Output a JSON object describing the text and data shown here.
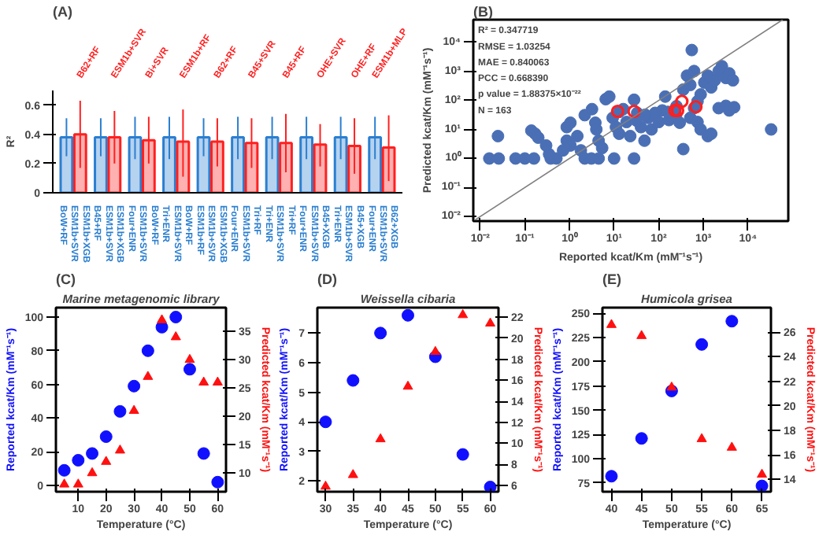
{
  "chart_data": [
    {
      "type": "bar",
      "ylabel": "R²",
      "ylim": [
        0,
        0.7
      ],
      "yticks": [
        0,
        0.2,
        0.4,
        0.6
      ],
      "categories": [
        "ESM1b+XGB\nESM1b+SVR\nBoW+RF",
        "ESM1b+XGB\nESM1b+SVR\nB45+RF",
        "BoW+RF\nESM1b+SVR\nFour+ENR",
        "BoW+RF\nESM1b+SVR\nTri+ENR",
        "ESM1b+XGB\nESM1b+SVR\nESM1b+RF",
        "Tri+RF\nESM1b+SVR\nFour+ENR",
        "Tri+RF\nESM1b+SVR\nTri+ENR",
        "B45+XGB\nESM1b+SVR\nFour+ENR",
        "B45+XGB\nESM1b+SVR\nTri+ENR",
        "B62+XGB\nESM1b+SVR\nFour+ENR"
      ],
      "series": [
        {
          "color": "#2b7fd0",
          "values": [
            0.38,
            0.38,
            0.38,
            0.38,
            0.38,
            0.38,
            0.38,
            0.38,
            0.38,
            0.38
          ],
          "errors": [
            [
              0.25,
              0.51
            ],
            [
              0.25,
              0.51
            ],
            [
              0.23,
              0.52
            ],
            [
              0.23,
              0.52
            ],
            [
              0.25,
              0.51
            ],
            [
              0.23,
              0.52
            ],
            [
              0.23,
              0.52
            ],
            [
              0.23,
              0.52
            ],
            [
              0.23,
              0.52
            ],
            [
              0.23,
              0.52
            ]
          ]
        },
        {
          "color": "#ff2020",
          "values": [
            0.4,
            0.38,
            0.36,
            0.35,
            0.35,
            0.34,
            0.34,
            0.33,
            0.32,
            0.31
          ],
          "errors": [
            [
              0.17,
              0.63
            ],
            [
              0.2,
              0.56
            ],
            [
              0.2,
              0.52
            ],
            [
              0.11,
              0.57
            ],
            [
              0.18,
              0.51
            ],
            [
              0.17,
              0.51
            ],
            [
              0.14,
              0.54
            ],
            [
              0.18,
              0.47
            ],
            [
              0.13,
              0.51
            ],
            [
              0.08,
              0.53
            ]
          ]
        }
      ],
      "annotations": [
        "(A)",
        "B62+RF",
        "ESM1b+SVR",
        "Bi+SVR",
        "ESM1b+RF",
        "B62+RF",
        "B45+SVR",
        "B45+RF",
        "OHE+SVR",
        "OHE+RF",
        "ESM1b+MLP"
      ]
    },
    {
      "type": "scatter",
      "log": "xy",
      "xlabel": "Reported kcat/Km (mM⁻¹s⁻¹)",
      "ylabel": "Predicted kcat/Km (mM⁻¹s⁻¹)",
      "xlim": [
        0.007,
        80000
      ],
      "ylim": [
        0.007,
        60000
      ],
      "xticks": [
        {
          "value": 0.01,
          "label": "10⁻²"
        },
        {
          "value": 0.1,
          "label": "10⁻¹"
        },
        {
          "value": 1,
          "label": "10⁰"
        },
        {
          "value": 10,
          "label": "10¹"
        },
        {
          "value": 100,
          "label": "10²"
        },
        {
          "value": 1000,
          "label": "10³"
        },
        {
          "value": 10000,
          "label": "10⁴"
        }
      ],
      "yticks": [
        {
          "value": 0.01,
          "label": "10⁻²"
        },
        {
          "value": 0.1,
          "label": "10⁻¹"
        },
        {
          "value": 1,
          "label": "10⁰"
        },
        {
          "value": 10,
          "label": "10¹"
        },
        {
          "value": 100,
          "label": "10²"
        },
        {
          "value": 1000,
          "label": "10³"
        },
        {
          "value": 10000,
          "label": "10⁴"
        }
      ],
      "marker": "circle",
      "series": [
        {
          "color": "#4a6fb5",
          "x": [
            0.025,
            0.14,
            0.17,
            0.2,
            0.87,
            1.05,
            0.87,
            1.05,
            1.5,
            1.8,
            2.2,
            3.2,
            3.8,
            4.5,
            5.4,
            6.5,
            7.8,
            9.3,
            11,
            13,
            16,
            19,
            23,
            28,
            33,
            40,
            48,
            58,
            69,
            83,
            100,
            120,
            140,
            170,
            245,
            295,
            355,
            430,
            510,
            620,
            510,
            620,
            740,
            870,
            1050,
            1260,
            1500,
            1800,
            2200,
            2600,
            3200,
            3800,
            4600,
            740,
            870,
            1260,
            1500,
            2200,
            3200,
            3800,
            4900,
            355,
            550,
            33000,
            0.016,
            0.026,
            0.062,
            0.1,
            0.16,
            0.38,
            0.51,
            2.2,
            3.1,
            4.5,
            10,
            28,
            0.35,
            0.3,
            0.72,
            32,
            50,
            160,
            250,
            13,
            4
          ],
          "values": [
            5.9,
            9.1,
            7.1,
            5.2,
            12,
            17,
            4.1,
            2.8,
            5.9,
            1.9,
            31,
            50,
            17,
            4.1,
            2.3,
            110,
            135,
            25,
            12,
            7.1,
            50,
            18,
            5.9,
            105,
            37,
            12,
            4.1,
            25,
            10,
            37,
            18,
            45,
            135,
            21,
            31,
            17,
            235,
            710,
            340,
            1020,
            25,
            54,
            93,
            160,
            410,
            710,
            280,
            490,
            1020,
            1500,
            590,
            850,
            490,
            18,
            10,
            5.9,
            7.1,
            54,
            65,
            45,
            58,
            2.1,
            5400,
            10,
            1,
            1,
            1,
            1,
            1,
            1,
            1,
            1,
            1,
            1,
            1,
            1,
            1.4,
            2.8,
            1.9,
            20,
            32,
            40,
            63,
            40,
            10
          ]
        },
        {
          "color": "#ff2020",
          "x": [
            12,
            28,
            230,
            265,
            330,
            680
          ],
          "values": [
            42,
            42,
            45,
            45,
            93,
            60
          ]
        },
        {
          "type": "line",
          "color": "#808080",
          "marker": "none",
          "x": [
            0.007,
            60000
          ],
          "values": [
            0.007,
            60000
          ]
        }
      ],
      "annotations": [
        "(B)",
        "R² = 0.347719",
        "RMSE = 1.03254",
        "MAE = 0.840063",
        "PCC = 0.668390",
        "p value = 1.88375×10⁻²²",
        "N = 163"
      ]
    },
    {
      "type": "scatter",
      "title": "Marine metagenomic library",
      "xlabel": "Temperature (°C)",
      "ylabel": "Reported kcat/Km (mM⁻¹s⁻¹)",
      "y2label": "Predicted kcat/Km (mM⁻¹s⁻¹)",
      "x": [
        5,
        10,
        15,
        20,
        25,
        30,
        35,
        40,
        45,
        50,
        55,
        60
      ],
      "xlim": [
        2,
        63
      ],
      "xticks": [
        10,
        20,
        30,
        40,
        50,
        60
      ],
      "ylim": [
        -3.7,
        105.6
      ],
      "yticks": [
        0,
        20,
        40,
        60,
        80,
        100
      ],
      "y2lim": [
        6.7,
        39.2
      ],
      "y2ticks": [
        10,
        15,
        20,
        25,
        30,
        35
      ],
      "series": [
        {
          "color": "#1010ff",
          "marker": "circle",
          "values": [
            9,
            15,
            19,
            29,
            44,
            59,
            80,
            94,
            100,
            69,
            19,
            2
          ]
        },
        {
          "color": "#ff1010",
          "marker": "triangle",
          "axis": "y2",
          "values": [
            8,
            8,
            10,
            12,
            14,
            21,
            27,
            37,
            34,
            30,
            26,
            26
          ]
        }
      ],
      "annotations": [
        "(C)"
      ]
    },
    {
      "type": "scatter",
      "title": "Weissella cibaria",
      "xlabel": "Temperature (°C)",
      "ylabel": "Reported kcat/Km (mM⁻¹s⁻¹)",
      "y2label": "Predicted kcat/Km (mM⁻¹s⁻¹)",
      "x": [
        30,
        35,
        40,
        45,
        50,
        55,
        60
      ],
      "xlim": [
        28.5,
        61.5
      ],
      "xticks": [
        30,
        35,
        40,
        45,
        50,
        55,
        60
      ],
      "ylim": [
        1.64,
        7.86
      ],
      "yticks": [
        2,
        3,
        4,
        5,
        6,
        7
      ],
      "y2lim": [
        5.4,
        22.9
      ],
      "y2ticks": [
        6,
        8,
        10,
        12,
        14,
        16,
        18,
        20,
        22
      ],
      "series": [
        {
          "color": "#1010ff",
          "marker": "circle",
          "values": [
            4.0,
            5.4,
            7.0,
            7.6,
            6.2,
            2.9,
            1.8
          ]
        },
        {
          "color": "#ff1010",
          "marker": "triangle",
          "axis": "y2",
          "values": [
            5.9,
            7.0,
            10.4,
            15.4,
            18.7,
            22.2,
            21.4
          ]
        }
      ],
      "annotations": [
        "(D)"
      ]
    },
    {
      "type": "scatter",
      "title": "Humicola grisea",
      "xlabel": "Temperature (°C)",
      "ylabel": "Reported kcat/Km (mM⁻¹s⁻¹)",
      "y2label": "Predicted kcat/Km (mM⁻¹s⁻¹)",
      "x": [
        40,
        45,
        50,
        55,
        60,
        65
      ],
      "xlim": [
        38.5,
        66.5
      ],
      "xticks": [
        40,
        45,
        50,
        55,
        60,
        65
      ],
      "ylim": [
        66,
        256
      ],
      "yticks": [
        75,
        100,
        125,
        150,
        175,
        200,
        225,
        250
      ],
      "y2lim": [
        13,
        28
      ],
      "y2ticks": [
        14,
        16,
        18,
        20,
        22,
        24,
        26
      ],
      "series": [
        {
          "color": "#1010ff",
          "marker": "circle",
          "values": [
            82,
            121,
            170,
            218,
            242,
            72
          ]
        },
        {
          "color": "#ff1010",
          "marker": "triangle",
          "axis": "y2",
          "values": [
            26.6,
            25.7,
            21.5,
            17.3,
            16.6,
            14.4
          ]
        }
      ],
      "annotations": [
        "(E)"
      ]
    }
  ]
}
